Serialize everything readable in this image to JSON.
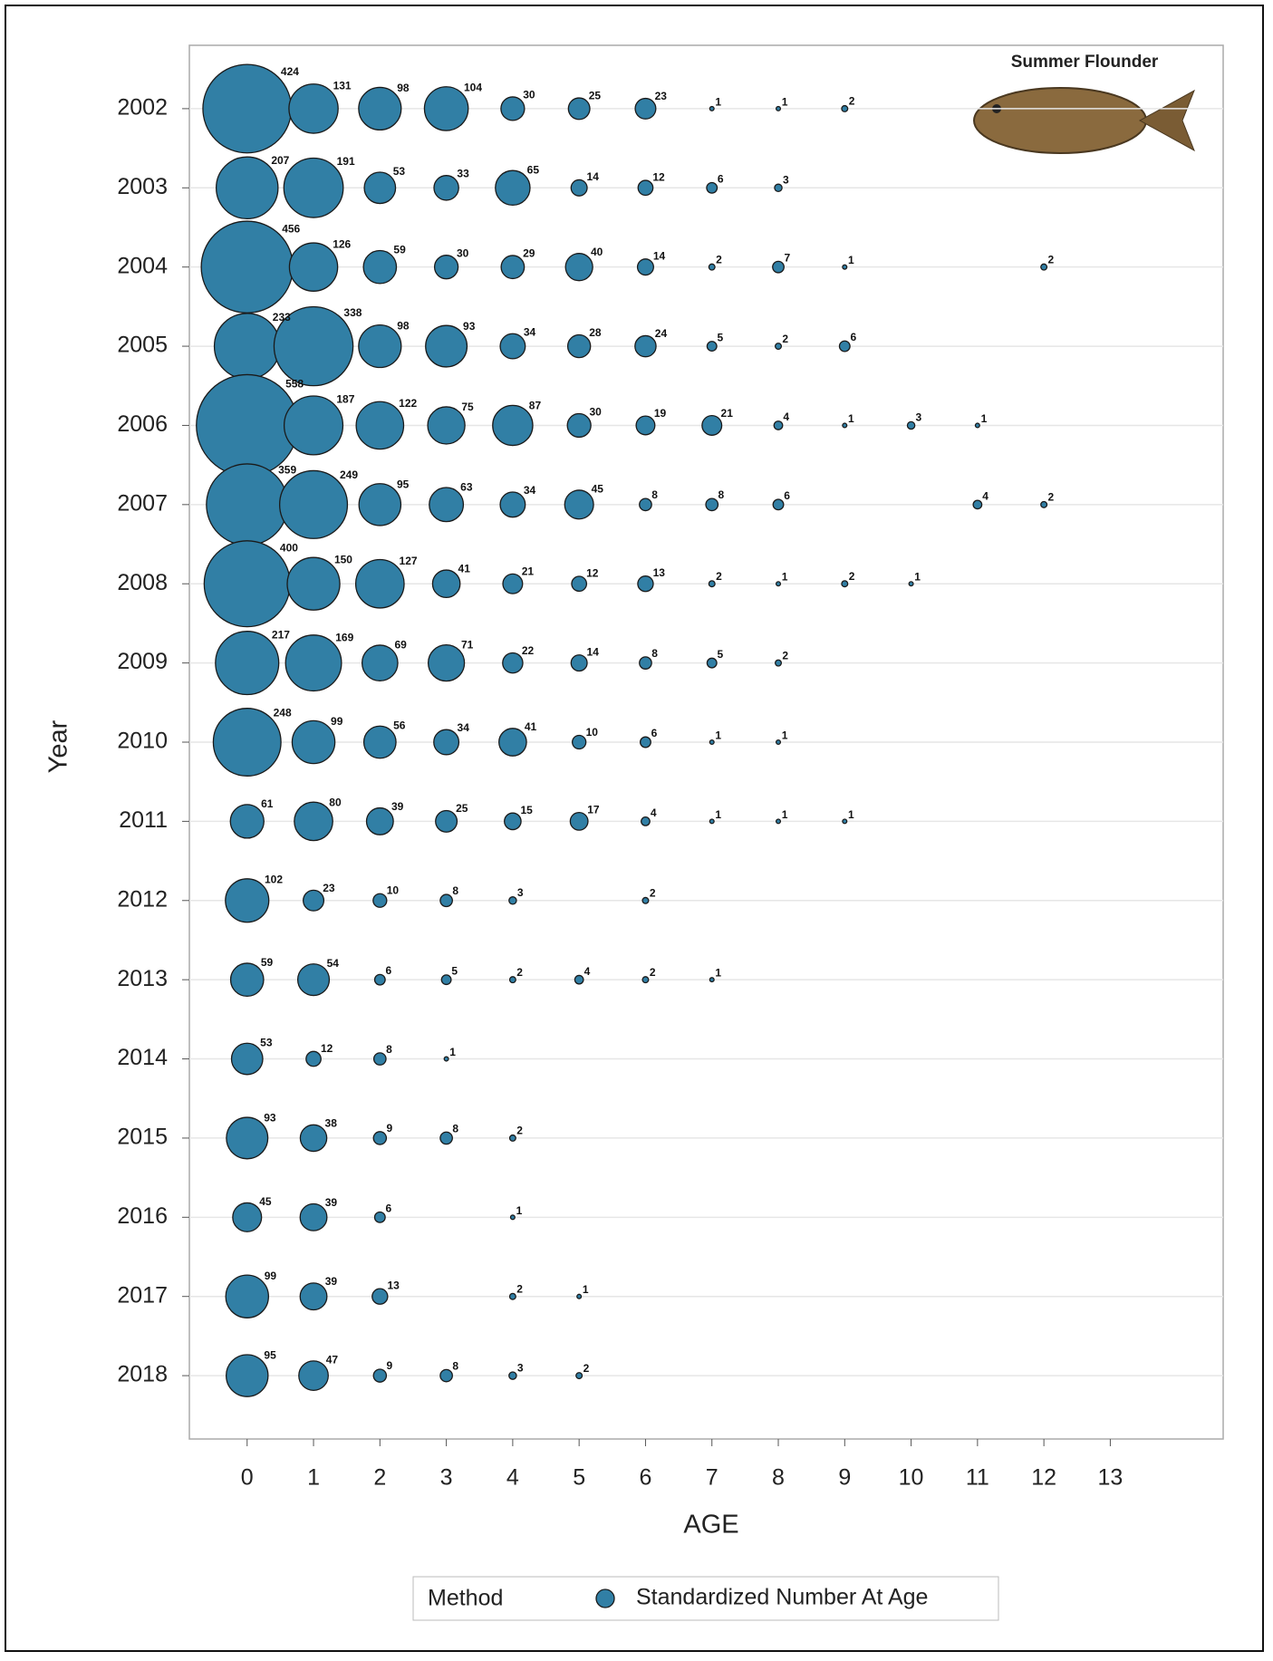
{
  "chart_data": {
    "type": "bubble",
    "title": "Summer Flounder",
    "xlabel": "AGE",
    "ylabel": "Year",
    "xlim": [
      -0.87,
      14.7
    ],
    "xticks": [
      0,
      1,
      2,
      3,
      4,
      5,
      6,
      7,
      8,
      9,
      10,
      11,
      12,
      13
    ],
    "ylim": [
      2018.8,
      2001.2
    ],
    "yticks": [
      2002,
      2003,
      2004,
      2005,
      2006,
      2007,
      2008,
      2009,
      2010,
      2011,
      2012,
      2013,
      2014,
      2015,
      2016,
      2017,
      2018
    ],
    "grid": true,
    "legend": {
      "title": "Method",
      "position": "bottom"
    },
    "series": [
      {
        "name": "Standardized Number At Age",
        "color": "#317fa5",
        "x": [
          0,
          1,
          2,
          3,
          4,
          5,
          6,
          7,
          8,
          9,
          0,
          1,
          2,
          3,
          4,
          5,
          6,
          7,
          8,
          0,
          1,
          2,
          3,
          4,
          5,
          6,
          7,
          8,
          9,
          12,
          0,
          1,
          2,
          3,
          4,
          5,
          6,
          7,
          8,
          9,
          0,
          1,
          2,
          3,
          4,
          5,
          6,
          7,
          8,
          9,
          10,
          11,
          0,
          1,
          2,
          3,
          4,
          5,
          6,
          7,
          8,
          11,
          12,
          0,
          1,
          2,
          3,
          4,
          5,
          6,
          7,
          8,
          9,
          10,
          0,
          1,
          2,
          3,
          4,
          5,
          6,
          7,
          8,
          0,
          1,
          2,
          3,
          4,
          5,
          6,
          7,
          8,
          0,
          1,
          2,
          3,
          4,
          5,
          6,
          7,
          8,
          9,
          0,
          1,
          2,
          3,
          4,
          6,
          0,
          1,
          2,
          3,
          4,
          5,
          6,
          7,
          0,
          1,
          2,
          3,
          0,
          1,
          2,
          3,
          4,
          0,
          1,
          2,
          4,
          0,
          1,
          2,
          4,
          5,
          0,
          1,
          2,
          3,
          4,
          5
        ],
        "y": [
          2002,
          2002,
          2002,
          2002,
          2002,
          2002,
          2002,
          2002,
          2002,
          2002,
          2003,
          2003,
          2003,
          2003,
          2003,
          2003,
          2003,
          2003,
          2003,
          2004,
          2004,
          2004,
          2004,
          2004,
          2004,
          2004,
          2004,
          2004,
          2004,
          2004,
          2005,
          2005,
          2005,
          2005,
          2005,
          2005,
          2005,
          2005,
          2005,
          2005,
          2006,
          2006,
          2006,
          2006,
          2006,
          2006,
          2006,
          2006,
          2006,
          2006,
          2006,
          2006,
          2007,
          2007,
          2007,
          2007,
          2007,
          2007,
          2007,
          2007,
          2007,
          2007,
          2007,
          2008,
          2008,
          2008,
          2008,
          2008,
          2008,
          2008,
          2008,
          2008,
          2008,
          2008,
          2009,
          2009,
          2009,
          2009,
          2009,
          2009,
          2009,
          2009,
          2009,
          2010,
          2010,
          2010,
          2010,
          2010,
          2010,
          2010,
          2010,
          2010,
          2011,
          2011,
          2011,
          2011,
          2011,
          2011,
          2011,
          2011,
          2011,
          2011,
          2012,
          2012,
          2012,
          2012,
          2012,
          2012,
          2013,
          2013,
          2013,
          2013,
          2013,
          2013,
          2013,
          2013,
          2014,
          2014,
          2014,
          2014,
          2015,
          2015,
          2015,
          2015,
          2015,
          2016,
          2016,
          2016,
          2016,
          2017,
          2017,
          2017,
          2017,
          2017,
          2018,
          2018,
          2018,
          2018,
          2018,
          2018
        ],
        "values": [
          424,
          131,
          98,
          104,
          30,
          25,
          23,
          1,
          1,
          2,
          207,
          191,
          53,
          33,
          65,
          14,
          12,
          6,
          3,
          456,
          126,
          59,
          30,
          29,
          40,
          14,
          2,
          7,
          1,
          2,
          233,
          338,
          98,
          93,
          34,
          28,
          24,
          5,
          2,
          6,
          558,
          187,
          122,
          75,
          87,
          30,
          19,
          21,
          4,
          1,
          3,
          1,
          359,
          249,
          95,
          63,
          34,
          45,
          8,
          8,
          6,
          4,
          2,
          400,
          150,
          127,
          41,
          21,
          12,
          13,
          2,
          1,
          2,
          1,
          217,
          169,
          69,
          71,
          22,
          14,
          8,
          5,
          2,
          248,
          99,
          56,
          34,
          41,
          10,
          6,
          1,
          1,
          61,
          80,
          39,
          25,
          15,
          17,
          4,
          1,
          1,
          1,
          102,
          23,
          10,
          8,
          3,
          2,
          59,
          54,
          6,
          5,
          2,
          4,
          2,
          1,
          53,
          12,
          8,
          1,
          93,
          38,
          9,
          8,
          2,
          45,
          39,
          6,
          1,
          99,
          39,
          13,
          2,
          1,
          95,
          47,
          9,
          8,
          3,
          2
        ]
      }
    ]
  }
}
